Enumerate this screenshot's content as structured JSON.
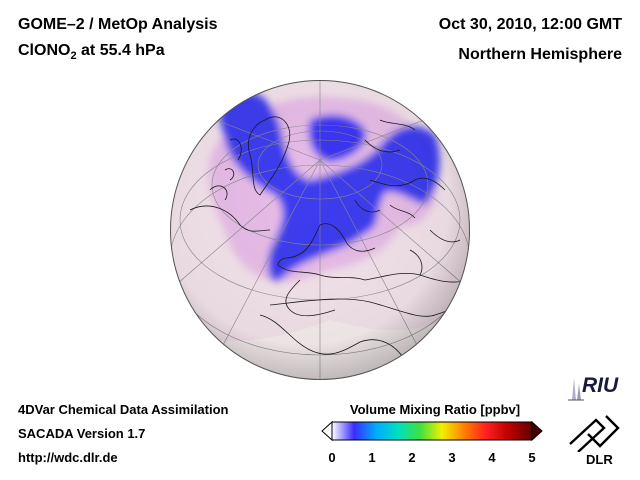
{
  "header": {
    "title_line1": "GOME–2 / MetOp Analysis",
    "title_line2_main": "ClONO",
    "title_line2_sub": "2",
    "title_line2_rest": " at 55.4 hPa",
    "date": "Oct 30, 2010, 12:00 GMT",
    "region": "Northern Hemisphere"
  },
  "footer": {
    "line1": "4DVar Chemical Data Assimilation",
    "line2": "SACADA Version 1.7",
    "line3": "http://wdc.dlr.de"
  },
  "colorbar": {
    "title": "Volume Mixing Ratio [ppbv]",
    "ticks": [
      "0",
      "1",
      "2",
      "3",
      "4",
      "5"
    ],
    "colors": [
      "#ffffff",
      "#3a2cff",
      "#00aaff",
      "#00e0c0",
      "#40e040",
      "#f0f000",
      "#ff8000",
      "#ff2020",
      "#c00000",
      "#600000"
    ]
  },
  "logos": {
    "riu": "RIU",
    "dlr": "DLR"
  },
  "map": {
    "projection": "orthographic",
    "field_low_color": "#f5e4ec",
    "field_high_color": "#3c3cf0"
  }
}
